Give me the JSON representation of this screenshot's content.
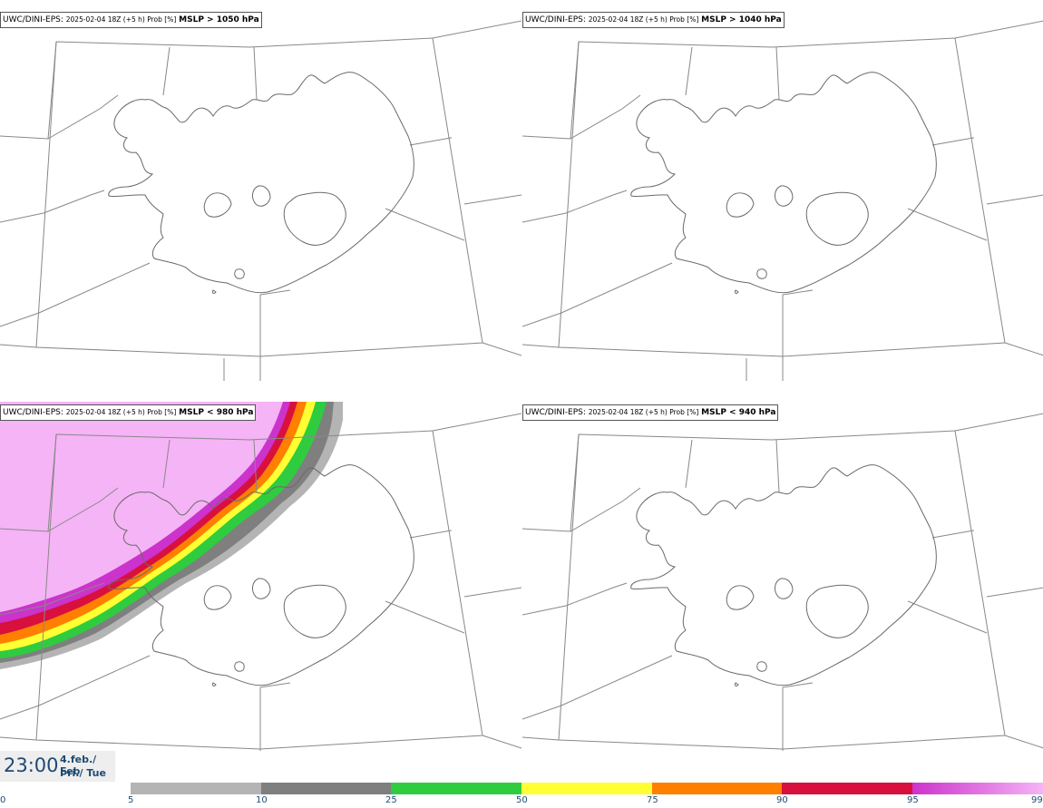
{
  "panels": [
    {
      "model": "UWC/DINI-EPS",
      "run": "2025-02-04 18Z (+5 h) Prob [%]",
      "param": "MSLP > 1050 hPa"
    },
    {
      "model": "UWC/DINI-EPS",
      "run": "2025-02-04 18Z (+5 h) Prob [%]",
      "param": "MSLP > 1040 hPa"
    },
    {
      "model": "UWC/DINI-EPS",
      "run": "2025-02-04 18Z (+5 h) Prob [%]",
      "param": "MSLP < 980 hPa"
    },
    {
      "model": "UWC/DINI-EPS",
      "run": "2025-02-04 18Z (+5 h) Prob [%]",
      "param": "MSLP < 940 hPa"
    }
  ],
  "valid_time": {
    "time": "23:00",
    "date": "4.feb./ Feb",
    "day": "Þri./ Tue"
  },
  "legend": {
    "ticks": [
      "0",
      "5",
      "10",
      "25",
      "50",
      "75",
      "90",
      "95",
      "99"
    ],
    "colors": [
      "#ffffff",
      "#b4b4b4",
      "#7f7f7f",
      "#2fcc40",
      "#ffff33",
      "#ff7f00",
      "#d8103e",
      "#cc33cc",
      "#f5b4f5"
    ]
  }
}
